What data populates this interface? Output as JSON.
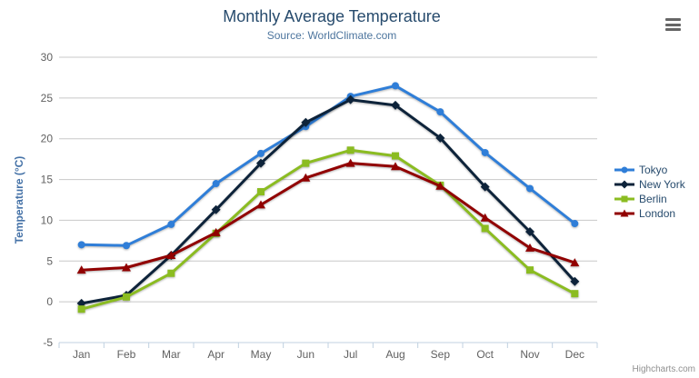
{
  "title": "Monthly Average Temperature",
  "subtitle": "Source: WorldClimate.com",
  "credits": "Highcharts.com",
  "colors": {
    "title": "#274b6d",
    "subtitle": "#4d759e",
    "axis_title": "#4572a7",
    "axis_labels": "#606060",
    "gridline": "#c8c8c8",
    "axis_line": "#c0d0e0",
    "legend_text": "#274b6d",
    "credits_text": "#909090"
  },
  "export_menu": {
    "icon": "hamburger-icon"
  },
  "chart_data": {
    "type": "line",
    "title": "Monthly Average Temperature",
    "subtitle": "Source: WorldClimate.com",
    "categories": [
      "Jan",
      "Feb",
      "Mar",
      "Apr",
      "May",
      "Jun",
      "Jul",
      "Aug",
      "Sep",
      "Oct",
      "Nov",
      "Dec"
    ],
    "xlabel": "",
    "ylabel": "Temperature (°C)",
    "ylim": [
      -5,
      30
    ],
    "yticks": [
      30,
      25,
      20,
      15,
      10,
      5,
      0,
      -5
    ],
    "grid": true,
    "legend_position": "right",
    "series": [
      {
        "name": "Tokyo",
        "color": "#2f7ed8",
        "marker": "circle",
        "values": [
          7.0,
          6.9,
          9.5,
          14.5,
          18.2,
          21.5,
          25.2,
          26.5,
          23.3,
          18.3,
          13.9,
          9.6
        ]
      },
      {
        "name": "New York",
        "color": "#0d233a",
        "marker": "diamond",
        "values": [
          -0.2,
          0.8,
          5.7,
          11.3,
          17.0,
          22.0,
          24.8,
          24.1,
          20.1,
          14.1,
          8.6,
          2.5
        ]
      },
      {
        "name": "Berlin",
        "color": "#8bbc21",
        "marker": "square",
        "values": [
          -0.9,
          0.6,
          3.5,
          8.4,
          13.5,
          17.0,
          18.6,
          17.9,
          14.3,
          9.0,
          3.9,
          1.0
        ]
      },
      {
        "name": "London",
        "color": "#910000",
        "marker": "triangle",
        "values": [
          3.9,
          4.2,
          5.7,
          8.5,
          11.9,
          15.2,
          17.0,
          16.6,
          14.2,
          10.3,
          6.6,
          4.8
        ]
      }
    ]
  }
}
